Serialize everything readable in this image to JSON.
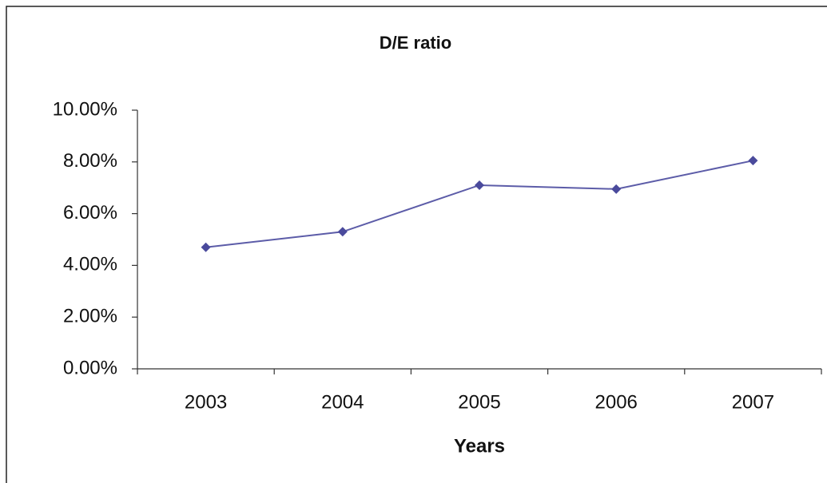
{
  "chart_data": {
    "type": "line",
    "title": "D/E ratio",
    "x_label": "Years",
    "categories": [
      "2003",
      "2004",
      "2005",
      "2006",
      "2007"
    ],
    "values": [
      4.7,
      5.3,
      7.1,
      6.95,
      8.05
    ],
    "color": "#5c5ca8",
    "marker_color": "#4a4a9c",
    "ylim": [
      0,
      10
    ],
    "yticks": [
      {
        "value": 0,
        "label": "0.00%"
      },
      {
        "value": 2,
        "label": "2.00%"
      },
      {
        "value": 4,
        "label": "4.00%"
      },
      {
        "value": 6,
        "label": "6.00%"
      },
      {
        "value": 8,
        "label": "8.00%"
      },
      {
        "value": 10,
        "label": "10.00%"
      }
    ],
    "grid": false
  }
}
